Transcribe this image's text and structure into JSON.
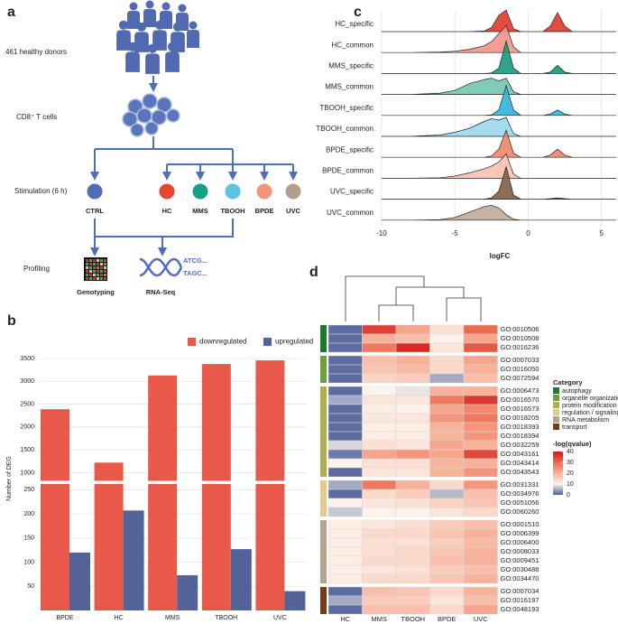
{
  "diagram": {
    "panel_label": "a",
    "donors": "461 healthy donors",
    "cells": "CD8⁺ T cells",
    "stimulation": "Stimulation (6 h)",
    "profiling": "Profiling",
    "conditions": [
      {
        "name": "CTRL",
        "color": "#4f6db8"
      },
      {
        "name": "HC",
        "color": "#e2472f"
      },
      {
        "name": "MMS",
        "color": "#17a184"
      },
      {
        "name": "TBOOH",
        "color": "#5cc3e0"
      },
      {
        "name": "BPDE",
        "color": "#f7937a"
      },
      {
        "name": "UVC",
        "color": "#b39e8c"
      }
    ],
    "genotyping": "Genotyping",
    "rnaseq": "RNA-Seq",
    "sequence": [
      "ATCG...",
      "TAGC..."
    ]
  },
  "chart_data": [
    {
      "type": "bar",
      "panel_label": "b",
      "ylabel": "Number of DEG",
      "categories": [
        "BPDE",
        "HC",
        "MMS",
        "TBOOH",
        "UVC"
      ],
      "series": [
        {
          "name": "downregulated",
          "color": "#e8594a",
          "values": [
            2390,
            1220,
            3130,
            3380,
            3460
          ]
        },
        {
          "name": "upregulated",
          "color": "#52639a",
          "values": [
            120,
            207,
            73,
            127,
            40
          ]
        }
      ],
      "ylim": [
        0,
        3600
      ],
      "ybreak": [
        260,
        850
      ],
      "yticks": [
        50,
        100,
        150,
        200,
        250,
        1000,
        1500,
        2000,
        2500,
        3000,
        3500
      ],
      "grid": true,
      "legend": "top"
    },
    {
      "type": "ridgeline",
      "panel_label": "c",
      "xlabel": "logFC",
      "x": [
        -10,
        -8,
        -6,
        -5,
        -4,
        -3,
        -2.5,
        -2,
        -1.5,
        -1,
        -0.5,
        0,
        1,
        1.5,
        2,
        2.5,
        3,
        6
      ],
      "series": [
        {
          "name": "HC_specific",
          "color": "#e0392f",
          "values": [
            0,
            0,
            0,
            0,
            0,
            0.02,
            0.15,
            0.6,
            0.8,
            0.1,
            0,
            0,
            0,
            0.2,
            0.7,
            0.2,
            0,
            0
          ]
        },
        {
          "name": "HC_common",
          "color": "#f1938a",
          "values": [
            0,
            0,
            0.02,
            0.05,
            0.12,
            0.25,
            0.4,
            0.7,
            1,
            0.2,
            0,
            0,
            0,
            0,
            0,
            0,
            0,
            0
          ]
        },
        {
          "name": "MMS_specific",
          "color": "#149a7c",
          "values": [
            0,
            0,
            0,
            0,
            0,
            0,
            0.02,
            0.2,
            1.2,
            0.2,
            0,
            0,
            0,
            0.05,
            0.3,
            0.05,
            0,
            0
          ]
        },
        {
          "name": "MMS_common",
          "color": "#73c6b0",
          "values": [
            0,
            0,
            0.05,
            0.15,
            0.4,
            0.55,
            0.6,
            0.5,
            0.6,
            0.1,
            0,
            0,
            0,
            0,
            0,
            0,
            0,
            0
          ]
        },
        {
          "name": "TBOOH_specific",
          "color": "#2fb2dc",
          "values": [
            0,
            0,
            0,
            0,
            0,
            0,
            0.02,
            0.2,
            1.1,
            0.2,
            0,
            0,
            0,
            0.05,
            0.2,
            0.05,
            0,
            0
          ]
        },
        {
          "name": "TBOOH_common",
          "color": "#9bd8ee",
          "values": [
            0,
            0,
            0.05,
            0.15,
            0.3,
            0.55,
            0.65,
            0.6,
            0.7,
            0.1,
            0,
            0,
            0,
            0,
            0,
            0,
            0,
            0
          ]
        },
        {
          "name": "BPDE_specific",
          "color": "#f08468",
          "values": [
            0,
            0,
            0,
            0,
            0,
            0,
            0.05,
            0.3,
            1.0,
            0.15,
            0,
            0,
            0,
            0.08,
            0.3,
            0.08,
            0,
            0
          ]
        },
        {
          "name": "BPDE_common",
          "color": "#f8c0b0",
          "values": [
            0,
            0,
            0.02,
            0.08,
            0.2,
            0.35,
            0.45,
            0.6,
            0.9,
            0.15,
            0,
            0,
            0,
            0,
            0,
            0,
            0,
            0
          ]
        },
        {
          "name": "UVC_specific",
          "color": "#7d5f45",
          "values": [
            0,
            0,
            0,
            0,
            0,
            0,
            0.05,
            0.3,
            1.2,
            0.15,
            0,
            0,
            0,
            0.02,
            0.05,
            0.02,
            0,
            0
          ]
        },
        {
          "name": "UVC_common",
          "color": "#c0aa98",
          "values": [
            0,
            0,
            0.02,
            0.1,
            0.3,
            0.5,
            0.55,
            0.45,
            0.2,
            0.03,
            0,
            0,
            0,
            0,
            0,
            0,
            0,
            0
          ]
        }
      ],
      "xlim": [
        -10.3,
        6
      ],
      "xticks": [
        -10,
        -5,
        0,
        5
      ],
      "grid": true
    },
    {
      "type": "heatmap",
      "panel_label": "d",
      "legend_title": "Category",
      "colorbar_title": "-log(qvalue)",
      "columns": [
        "HC",
        "MMS",
        "TBOOH",
        "BPDE",
        "UVC"
      ],
      "groups": [
        {
          "name": "autophagy",
          "color": "#1b7a2c",
          "rows": [
            "GO:0010506",
            "GO:0010508",
            "GO:0016236"
          ],
          "values": [
            [
              1,
              35,
              22,
              13,
              30
            ],
            [
              1,
              20,
              18,
              10,
              22
            ],
            [
              1,
              28,
              38,
              12,
              32
            ]
          ]
        },
        {
          "name": "organelle organization",
          "color": "#6ba03b",
          "rows": [
            "GO:0007033",
            "GO:0016050",
            "GO:0072594"
          ],
          "values": [
            [
              1,
              18,
              20,
              14,
              22
            ],
            [
              1,
              17,
              19,
              14,
              20
            ],
            [
              1,
              15,
              16,
              5,
              18
            ]
          ]
        },
        {
          "name": "protein modification",
          "color": "#a9b152",
          "rows": [
            "GO:0006473",
            "GO:0016570",
            "GO:0016573",
            "GO:0018205",
            "GO:0018393",
            "GO:0018394",
            "GO:0032259",
            "GO:0043161",
            "GO:0043414",
            "GO:0043543"
          ],
          "values": [
            [
              1,
              10,
              9,
              20,
              20
            ],
            [
              5,
              12,
              12,
              28,
              36
            ],
            [
              1,
              11,
              10,
              22,
              26
            ],
            [
              1,
              12,
              12,
              24,
              28
            ],
            [
              1,
              11,
              11,
              20,
              24
            ],
            [
              1,
              11,
              11,
              20,
              24
            ],
            [
              8,
              13,
              12,
              22,
              20
            ],
            [
              2,
              22,
              24,
              22,
              34
            ],
            [
              10,
              13,
              13,
              20,
              20
            ],
            [
              1,
              12,
              12,
              20,
              24
            ]
          ]
        },
        {
          "name": "regulation / signaling",
          "color": "#e9c98a",
          "rows": [
            "GO:0031331",
            "GO:0034976",
            "GO:0051056",
            "GO:0060260"
          ],
          "values": [
            [
              5,
              28,
              20,
              14,
              24
            ],
            [
              1,
              14,
              16,
              6,
              18
            ],
            [
              10,
              12,
              13,
              15,
              17
            ],
            [
              7,
              10,
              10,
              12,
              14
            ]
          ]
        },
        {
          "name": "RNA metabolism",
          "color": "#baa293",
          "rows": [
            "GO:0001510",
            "GO:0006399",
            "GO:0006400",
            "GO:0008033",
            "GO:0009451",
            "GO:0030488",
            "GO:0034470"
          ],
          "values": [
            [
              11,
              12,
              13,
              16,
              18
            ],
            [
              11,
              14,
              14,
              17,
              20
            ],
            [
              11,
              13,
              13,
              16,
              19
            ],
            [
              11,
              13,
              14,
              17,
              20
            ],
            [
              11,
              14,
              14,
              18,
              20
            ],
            [
              11,
              12,
              13,
              16,
              18
            ],
            [
              11,
              14,
              14,
              17,
              20
            ]
          ]
        },
        {
          "name": "transport",
          "color": "#7a3a12",
          "rows": [
            "GO:0007034",
            "GO:0016197",
            "GO:0048193"
          ],
          "values": [
            [
              1,
              18,
              17,
              14,
              20
            ],
            [
              5,
              16,
              16,
              12,
              18
            ],
            [
              1,
              18,
              18,
              14,
              22
            ]
          ]
        }
      ],
      "clim": [
        0,
        40
      ],
      "cticks": [
        0,
        10,
        20,
        30,
        40
      ],
      "colorscale": [
        {
          "value": 0,
          "color": "#4a5d98"
        },
        {
          "value": 10,
          "color": "#fdf3ec"
        },
        {
          "value": 20,
          "color": "#f9b29a"
        },
        {
          "value": 30,
          "color": "#ec6a50"
        },
        {
          "value": 40,
          "color": "#cf1a1a"
        }
      ]
    }
  ]
}
